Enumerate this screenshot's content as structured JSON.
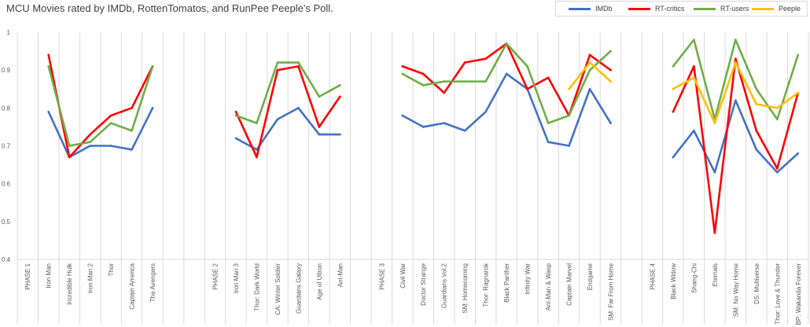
{
  "chart_data": {
    "type": "line",
    "title": "MCU Movies rated by IMDb, RottenTomatos, and RunPee Peeple's Poll.",
    "xlabel": "",
    "ylabel": "",
    "ylim": [
      0.4,
      1.0
    ],
    "yticks": [
      "0.4",
      "0.5",
      "0.6",
      "0.7",
      "0.8",
      "0.9",
      "1"
    ],
    "grid": "vertical",
    "legend_position": "top-right",
    "categories": [
      "PHASE 1",
      "Iron Man",
      "Incredible Hulk",
      "Iron Man 2",
      "Thor",
      "Captain America",
      "The Avengers",
      "",
      "",
      "PHASE 2",
      "Iron Man 3",
      "Thor: Dark World",
      "CA: Winter Soldier",
      "Guardians Galaxy",
      "Age of Ultron",
      "Ant-Man",
      "",
      "PHASE 3",
      "Civil War",
      "Doctor Strange",
      "Guardians Vol.2",
      "SM: Homecoming",
      "Thor: Ragnarok",
      "Black Panther",
      "Infinity War",
      "Ant-Man & Wasp",
      "Captain Marvel",
      "Endgame",
      "SM: Far From Home",
      "",
      "PHASE 4",
      "Black Widow",
      "Shang-Chi",
      "Eternals",
      "SM: No Way Home",
      "DS: Multiverse",
      "Thor: Love & Thunder",
      "BP: Wakanda Forever"
    ],
    "series": [
      {
        "name": "IMDb",
        "color": "#4472c4",
        "values": [
          null,
          0.79,
          0.67,
          0.7,
          0.7,
          0.69,
          0.8,
          null,
          null,
          null,
          0.72,
          0.69,
          0.77,
          0.8,
          0.73,
          0.73,
          null,
          null,
          0.78,
          0.75,
          0.76,
          0.74,
          0.79,
          0.89,
          0.85,
          0.71,
          0.7,
          0.85,
          0.76,
          null,
          null,
          0.67,
          0.74,
          0.63,
          0.82,
          0.69,
          0.63,
          0.68
        ]
      },
      {
        "name": "RT-critics",
        "color": "#ff0000",
        "values": [
          null,
          0.94,
          0.67,
          0.73,
          0.78,
          0.8,
          0.91,
          null,
          null,
          null,
          0.79,
          0.67,
          0.9,
          0.91,
          0.75,
          0.83,
          null,
          null,
          0.91,
          0.89,
          0.84,
          0.92,
          0.93,
          0.97,
          0.85,
          0.88,
          0.78,
          0.94,
          0.9,
          null,
          null,
          0.79,
          0.91,
          0.47,
          0.93,
          0.74,
          0.64,
          0.84
        ]
      },
      {
        "name": "RT-users",
        "color": "#70ad47",
        "values": [
          null,
          0.91,
          0.7,
          0.71,
          0.76,
          0.74,
          0.91,
          null,
          null,
          null,
          0.78,
          0.76,
          0.92,
          0.92,
          0.83,
          0.86,
          null,
          null,
          0.89,
          0.86,
          0.87,
          0.87,
          0.87,
          0.97,
          0.91,
          0.76,
          0.78,
          0.9,
          0.95,
          null,
          null,
          0.91,
          0.98,
          0.77,
          0.98,
          0.85,
          0.77,
          0.94
        ]
      },
      {
        "name": "Peeple",
        "color": "#ffc000",
        "values": [
          null,
          null,
          null,
          null,
          null,
          null,
          null,
          null,
          null,
          null,
          null,
          null,
          null,
          null,
          null,
          null,
          null,
          null,
          null,
          null,
          null,
          null,
          null,
          null,
          null,
          null,
          0.85,
          0.92,
          0.87,
          null,
          null,
          0.85,
          0.88,
          0.76,
          0.92,
          0.81,
          0.8,
          0.84
        ]
      }
    ]
  }
}
